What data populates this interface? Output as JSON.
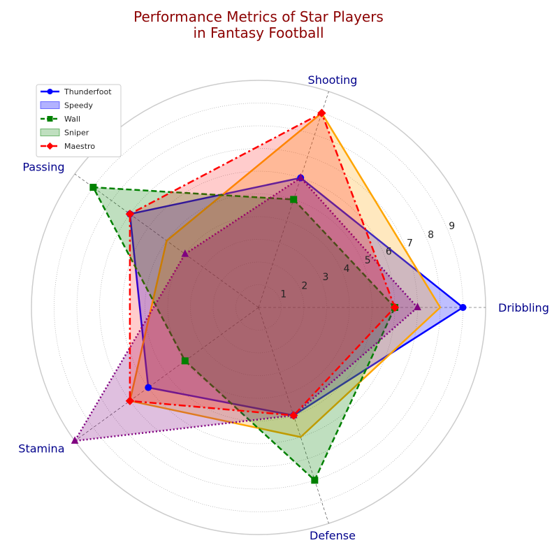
{
  "chart_data": {
    "type": "radar",
    "title_lines": [
      "Performance Metrics of Star Players",
      "in Fantasy Football"
    ],
    "axes": [
      "Dribbling",
      "Shooting",
      "Passing",
      "Stamina",
      "Defense"
    ],
    "rticks": [
      1,
      2,
      3,
      4,
      5,
      6,
      7,
      8,
      9
    ],
    "rmax": 10,
    "grid": true,
    "legend_position": "upper-left",
    "series": [
      {
        "name": "Thunderfoot",
        "values": [
          9,
          6,
          7,
          6,
          5
        ],
        "color": "#0000ff",
        "fill": "#0000ff",
        "fill_alpha": 0.25,
        "dash": "",
        "marker": "circle"
      },
      {
        "name": "",
        "values": [
          8,
          9,
          5,
          7,
          6
        ],
        "color": "#ffa500",
        "fill": "#ffa500",
        "fill_alpha": 0.25,
        "dash": "",
        "marker": "none"
      },
      {
        "name": "Wall",
        "values": [
          6,
          5,
          9,
          4,
          8
        ],
        "color": "#008000",
        "fill": "#008000",
        "fill_alpha": 0.25,
        "dash": "8,4",
        "marker": "square"
      },
      {
        "name": "",
        "values": [
          7,
          6,
          4,
          10,
          5
        ],
        "color": "#800080",
        "fill": "#800080",
        "fill_alpha": 0.25,
        "dash": "2,3",
        "marker": "triangle"
      },
      {
        "name": "Maestro",
        "values": [
          6,
          9,
          7,
          7,
          5
        ],
        "color": "#ff0000",
        "fill": "#ff0000",
        "fill_alpha": 0.2,
        "dash": "10,4,3,4",
        "marker": "diamond"
      }
    ],
    "legend": [
      {
        "label": "Thunderfoot",
        "kind": "line",
        "color": "#0000ff",
        "dash": "",
        "marker": "circle"
      },
      {
        "label": "Speedy",
        "kind": "patch",
        "color": "#0000ff",
        "alpha": 0.3
      },
      {
        "label": "Wall",
        "kind": "line",
        "color": "#008000",
        "dash": "6,3",
        "marker": "square"
      },
      {
        "label": "Sniper",
        "kind": "patch",
        "color": "#008000",
        "alpha": 0.25
      },
      {
        "label": "Maestro",
        "kind": "line",
        "color": "#ff0000",
        "dash": "8,3,2,3",
        "marker": "diamond"
      }
    ]
  }
}
